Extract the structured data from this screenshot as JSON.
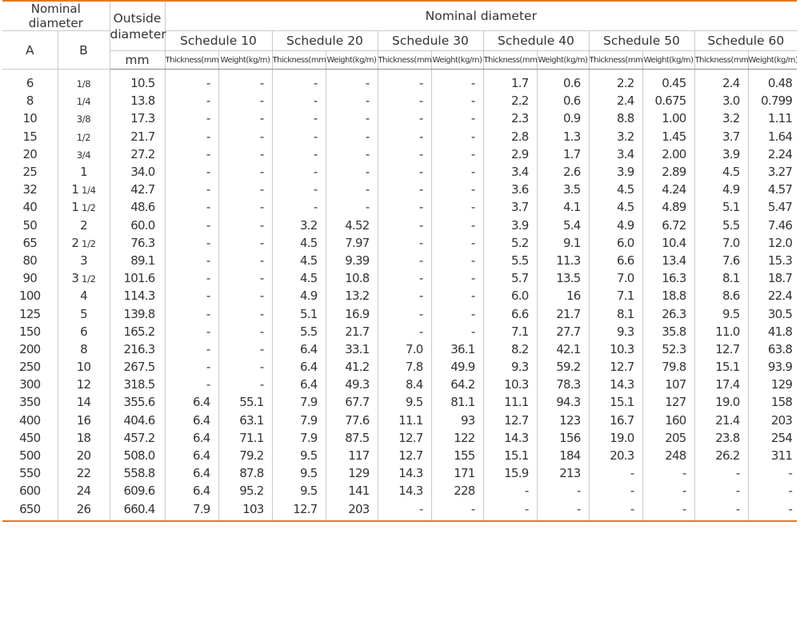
{
  "header": {
    "nominal_diameter_left": "Nominal diameter",
    "col_a": "A",
    "col_b": "B",
    "outside_diameter": "Outside diameter",
    "outside_unit": "mm",
    "nominal_diameter_group": "Nominal diameter",
    "schedules": [
      "Schedule 10",
      "Schedule 20",
      "Schedule 30",
      "Schedule 40",
      "Schedule 50",
      "Schedule 60"
    ],
    "thickness_label": "Thickness(mm)",
    "weight_label": "Weight(kg/m)"
  },
  "rows": [
    {
      "a": "6",
      "b_whole": "",
      "b_frac": "1/8",
      "od": "10.5",
      "v": [
        "-",
        "-",
        "-",
        "-",
        "-",
        "-",
        "1.7",
        "0.6",
        "2.2",
        "0.45",
        "2.4",
        "0.48"
      ]
    },
    {
      "a": "8",
      "b_whole": "",
      "b_frac": "1/4",
      "od": "13.8",
      "v": [
        "-",
        "-",
        "-",
        "-",
        "-",
        "-",
        "2.2",
        "0.6",
        "2.4",
        "0.675",
        "3.0",
        "0.799"
      ]
    },
    {
      "a": "10",
      "b_whole": "",
      "b_frac": "3/8",
      "od": "17.3",
      "v": [
        "-",
        "-",
        "-",
        "-",
        "-",
        "-",
        "2.3",
        "0.9",
        "8.8",
        "1.00",
        "3.2",
        "1.11"
      ]
    },
    {
      "a": "15",
      "b_whole": "",
      "b_frac": "1/2",
      "od": "21.7",
      "v": [
        "-",
        "-",
        "-",
        "-",
        "-",
        "-",
        "2.8",
        "1.3",
        "3.2",
        "1.45",
        "3.7",
        "1.64"
      ]
    },
    {
      "a": "20",
      "b_whole": "",
      "b_frac": "3/4",
      "od": "27.2",
      "v": [
        "-",
        "-",
        "-",
        "-",
        "-",
        "-",
        "2.9",
        "1.7",
        "3.4",
        "2.00",
        "3.9",
        "2.24"
      ]
    },
    {
      "a": "25",
      "b_whole": "1",
      "b_frac": "",
      "od": "34.0",
      "v": [
        "-",
        "-",
        "-",
        "-",
        "-",
        "-",
        "3.4",
        "2.6",
        "3.9",
        "2.89",
        "4.5",
        "3.27"
      ]
    },
    {
      "a": "32",
      "b_whole": "1",
      "b_frac": "1/4",
      "od": "42.7",
      "v": [
        "-",
        "-",
        "-",
        "-",
        "-",
        "-",
        "3.6",
        "3.5",
        "4.5",
        "4.24",
        "4.9",
        "4.57"
      ]
    },
    {
      "a": "40",
      "b_whole": "1",
      "b_frac": "1/2",
      "od": "48.6",
      "v": [
        "-",
        "-",
        "-",
        "-",
        "-",
        "-",
        "3.7",
        "4.1",
        "4.5",
        "4.89",
        "5.1",
        "5.47"
      ]
    },
    {
      "a": "50",
      "b_whole": "2",
      "b_frac": "",
      "od": "60.0",
      "v": [
        "-",
        "-",
        "3.2",
        "4.52",
        "-",
        "-",
        "3.9",
        "5.4",
        "4.9",
        "6.72",
        "5.5",
        "7.46"
      ]
    },
    {
      "a": "65",
      "b_whole": "2",
      "b_frac": "1/2",
      "od": "76.3",
      "v": [
        "-",
        "-",
        "4.5",
        "7.97",
        "-",
        "-",
        "5.2",
        "9.1",
        "6.0",
        "10.4",
        "7.0",
        "12.0"
      ]
    },
    {
      "a": "80",
      "b_whole": "3",
      "b_frac": "",
      "od": "89.1",
      "v": [
        "-",
        "-",
        "4.5",
        "9.39",
        "-",
        "-",
        "5.5",
        "11.3",
        "6.6",
        "13.4",
        "7.6",
        "15.3"
      ]
    },
    {
      "a": "90",
      "b_whole": "3",
      "b_frac": "1/2",
      "od": "101.6",
      "v": [
        "-",
        "-",
        "4.5",
        "10.8",
        "-",
        "-",
        "5.7",
        "13.5",
        "7.0",
        "16.3",
        "8.1",
        "18.7"
      ]
    },
    {
      "a": "100",
      "b_whole": "4",
      "b_frac": "",
      "od": "114.3",
      "v": [
        "-",
        "-",
        "4.9",
        "13.2",
        "-",
        "-",
        "6.0",
        "16",
        "7.1",
        "18.8",
        "8.6",
        "22.4"
      ]
    },
    {
      "a": "125",
      "b_whole": "5",
      "b_frac": "",
      "od": "139.8",
      "v": [
        "-",
        "-",
        "5.1",
        "16.9",
        "-",
        "-",
        "6.6",
        "21.7",
        "8.1",
        "26.3",
        "9.5",
        "30.5"
      ]
    },
    {
      "a": "150",
      "b_whole": "6",
      "b_frac": "",
      "od": "165.2",
      "v": [
        "-",
        "-",
        "5.5",
        "21.7",
        "-",
        "-",
        "7.1",
        "27.7",
        "9.3",
        "35.8",
        "11.0",
        "41.8"
      ]
    },
    {
      "a": "200",
      "b_whole": "8",
      "b_frac": "",
      "od": "216.3",
      "v": [
        "-",
        "-",
        "6.4",
        "33.1",
        "7.0",
        "36.1",
        "8.2",
        "42.1",
        "10.3",
        "52.3",
        "12.7",
        "63.8"
      ]
    },
    {
      "a": "250",
      "b_whole": "10",
      "b_frac": "",
      "od": "267.5",
      "v": [
        "-",
        "-",
        "6.4",
        "41.2",
        "7.8",
        "49.9",
        "9.3",
        "59.2",
        "12.7",
        "79.8",
        "15.1",
        "93.9"
      ]
    },
    {
      "a": "300",
      "b_whole": "12",
      "b_frac": "",
      "od": "318.5",
      "v": [
        "-",
        "-",
        "6.4",
        "49.3",
        "8.4",
        "64.2",
        "10.3",
        "78.3",
        "14.3",
        "107",
        "17.4",
        "129"
      ]
    },
    {
      "a": "350",
      "b_whole": "14",
      "b_frac": "",
      "od": "355.6",
      "v": [
        "6.4",
        "55.1",
        "7.9",
        "67.7",
        "9.5",
        "81.1",
        "11.1",
        "94.3",
        "15.1",
        "127",
        "19.0",
        "158"
      ]
    },
    {
      "a": "400",
      "b_whole": "16",
      "b_frac": "",
      "od": "404.6",
      "v": [
        "6.4",
        "63.1",
        "7.9",
        "77.6",
        "11.1",
        "93",
        "12.7",
        "123",
        "16.7",
        "160",
        "21.4",
        "203"
      ]
    },
    {
      "a": "450",
      "b_whole": "18",
      "b_frac": "",
      "od": "457.2",
      "v": [
        "6.4",
        "71.1",
        "7.9",
        "87.5",
        "12.7",
        "122",
        "14.3",
        "156",
        "19.0",
        "205",
        "23.8",
        "254"
      ]
    },
    {
      "a": "500",
      "b_whole": "20",
      "b_frac": "",
      "od": "508.0",
      "v": [
        "6.4",
        "79.2",
        "9.5",
        "117",
        "12.7",
        "155",
        "15.1",
        "184",
        "20.3",
        "248",
        "26.2",
        "311"
      ]
    },
    {
      "a": "550",
      "b_whole": "22",
      "b_frac": "",
      "od": "558.8",
      "v": [
        "6.4",
        "87.8",
        "9.5",
        "129",
        "14.3",
        "171",
        "15.9",
        "213",
        "-",
        "-",
        "-",
        "-"
      ]
    },
    {
      "a": "600",
      "b_whole": "24",
      "b_frac": "",
      "od": "609.6",
      "v": [
        "6.4",
        "95.2",
        "9.5",
        "141",
        "14.3",
        "228",
        "-",
        "-",
        "-",
        "-",
        "-",
        "-"
      ]
    },
    {
      "a": "650",
      "b_whole": "26",
      "b_frac": "",
      "od": "660.4",
      "v": [
        "7.9",
        "103",
        "12.7",
        "203",
        "-",
        "-",
        "-",
        "-",
        "-",
        "-",
        "-",
        "-"
      ]
    }
  ],
  "colors": {
    "accent_rule": "#e07a1f",
    "grid_line": "#c9c9c9",
    "text": "#333333"
  }
}
